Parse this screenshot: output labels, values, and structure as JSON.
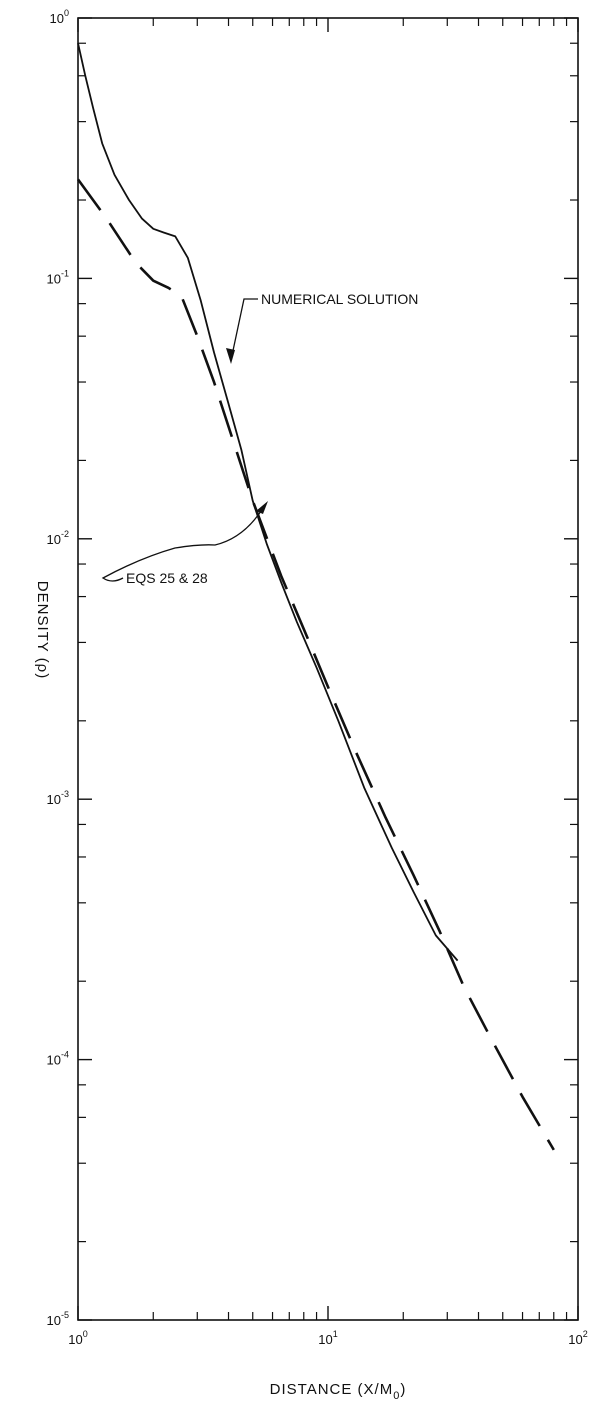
{
  "chart_data": {
    "type": "line",
    "title": "",
    "xlabel": "DISTANCE (X/M",
    "xlabel_sub": "0",
    "xlabel_end": ")",
    "ylabel": "DENSITY (ρ)",
    "xscale": "log",
    "yscale": "log",
    "xlim": [
      1,
      100
    ],
    "ylim": [
      1e-05,
      1
    ],
    "x_ticks": [
      {
        "base": "10",
        "exp": "0",
        "value": 1
      },
      {
        "base": "10",
        "exp": "1",
        "value": 10
      },
      {
        "base": "10",
        "exp": "2",
        "value": 100
      }
    ],
    "y_ticks": [
      {
        "base": "10",
        "exp": "0",
        "value": 1
      },
      {
        "base": "10",
        "exp": "-1",
        "value": 0.1
      },
      {
        "base": "10",
        "exp": "-2",
        "value": 0.01
      },
      {
        "base": "10",
        "exp": "-3",
        "value": 0.001
      },
      {
        "base": "10",
        "exp": "-4",
        "value": 0.0001
      },
      {
        "base": "10",
        "exp": "-5",
        "value": 1e-05
      }
    ],
    "grid": false,
    "series": [
      {
        "name": "NUMERICAL SOLUTION",
        "style": "solid",
        "color": "#111111",
        "x": [
          1.0,
          1.07,
          1.15,
          1.25,
          1.4,
          1.6,
          1.8,
          2.0,
          2.2,
          2.45,
          2.75,
          3.1,
          3.5,
          4.0,
          4.5,
          5.0,
          5.7,
          6.5,
          7.5,
          9.0,
          11.0,
          14.0,
          18.0,
          22.0,
          27.0,
          33.0
        ],
        "y": [
          0.8,
          0.6,
          0.45,
          0.33,
          0.25,
          0.2,
          0.17,
          0.155,
          0.15,
          0.145,
          0.12,
          0.082,
          0.052,
          0.033,
          0.022,
          0.014,
          0.0095,
          0.0068,
          0.0048,
          0.0032,
          0.002,
          0.0011,
          0.00065,
          0.00044,
          0.0003,
          0.00024
        ]
      },
      {
        "name": "EQS 25 & 28",
        "style": "dashed",
        "color": "#111111",
        "x": [
          1.0,
          1.3,
          1.7,
          2.0,
          2.3,
          2.6,
          3.0,
          3.5,
          4.0,
          5.0,
          6.5,
          8.0,
          10.0,
          13.0,
          17.0,
          22.0,
          28.0,
          35.0,
          45.0,
          60.0,
          80.0
        ],
        "y": [
          0.24,
          0.17,
          0.115,
          0.098,
          0.092,
          0.085,
          0.06,
          0.04,
          0.027,
          0.014,
          0.0072,
          0.0045,
          0.0027,
          0.0015,
          0.00085,
          0.00051,
          0.00031,
          0.00019,
          0.00012,
          7.2e-05,
          4.5e-05
        ]
      }
    ],
    "annotations": [
      {
        "text": "NUMERICAL SOLUTION",
        "points_to": "NUMERICAL SOLUTION"
      },
      {
        "text": "EQS 25 & 28",
        "points_to": "EQS 25 & 28"
      }
    ]
  }
}
